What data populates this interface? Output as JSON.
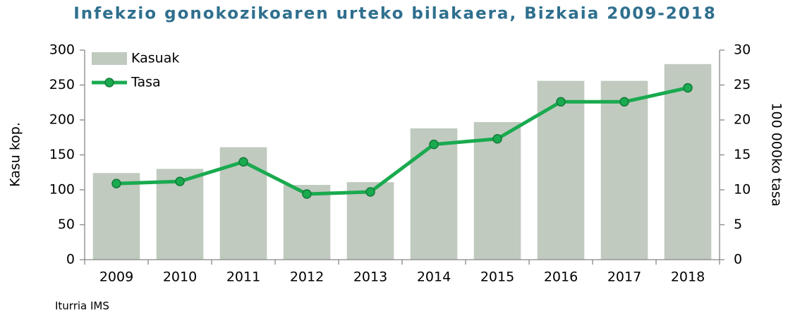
{
  "chart_data": {
    "type": "bar+line",
    "title": "Infekzio gonokozikoaren urteko bilakaera, Bizkaia 2009-2018",
    "ylabel": "Kasu kop.",
    "y2label": "100 000ko tasa",
    "source": "Iturria IMS",
    "categories": [
      "2009",
      "2010",
      "2011",
      "2012",
      "2013",
      "2014",
      "2015",
      "2016",
      "2017",
      "2018"
    ],
    "series": [
      {
        "name": "Kasuak",
        "type": "bar",
        "color": "#c0cabf",
        "values": [
          124,
          130,
          161,
          107,
          111,
          188,
          197,
          256,
          256,
          280
        ]
      },
      {
        "name": "Tasa",
        "type": "line",
        "axis": "y2",
        "color": "#1aaa4f",
        "values": [
          10.9,
          11.2,
          14.0,
          9.4,
          9.7,
          16.5,
          17.3,
          22.6,
          22.6,
          24.6
        ]
      }
    ],
    "ylim": [
      0,
      300
    ],
    "yticks": [
      0,
      50,
      100,
      150,
      200,
      250,
      300
    ],
    "y2lim": [
      0,
      30
    ],
    "y2ticks": [
      0,
      5,
      10,
      15,
      20,
      25,
      30
    ],
    "legend": "upper left",
    "grid": false
  }
}
